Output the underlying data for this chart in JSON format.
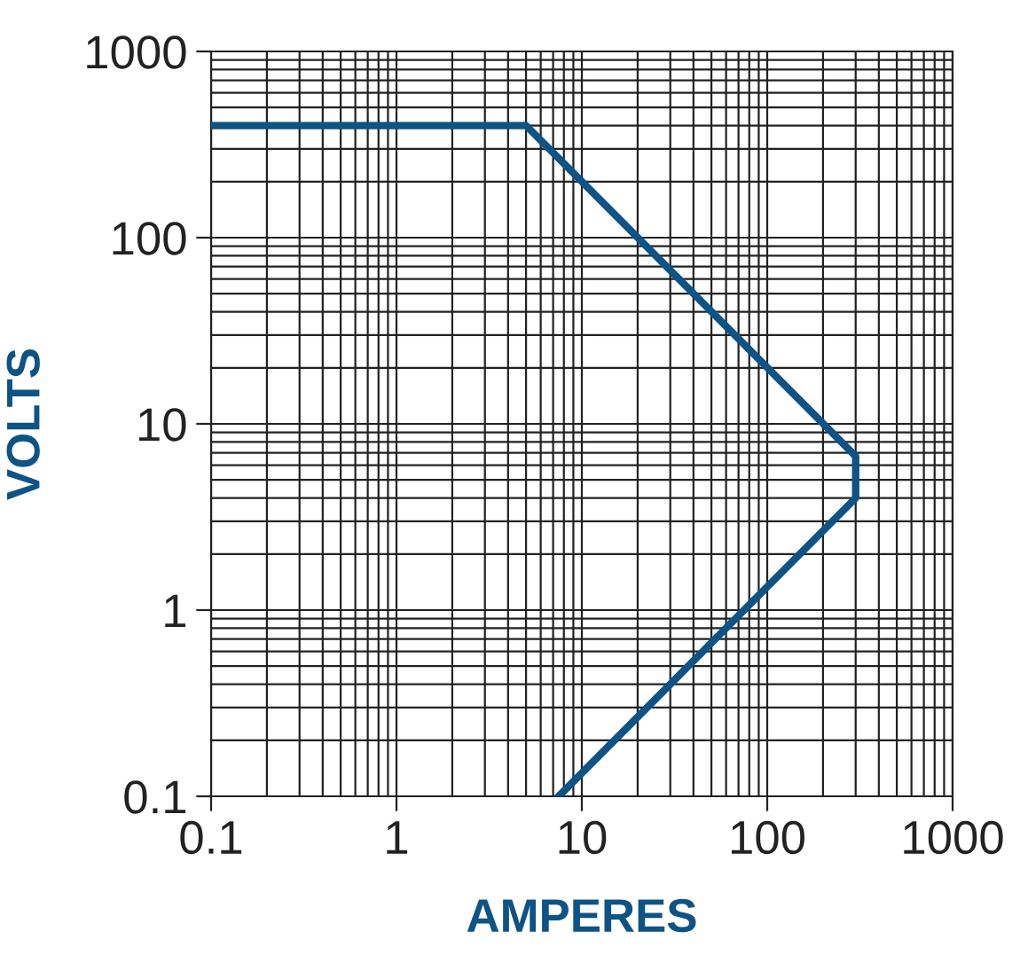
{
  "chart_data": {
    "type": "line",
    "xlabel": "AMPERES",
    "ylabel": "VOLTS",
    "log": "xy",
    "xlim": [
      0.1,
      1000
    ],
    "ylim": [
      0.1,
      1000
    ],
    "xticks": [
      0.1,
      1,
      10,
      100,
      1000
    ],
    "yticks": [
      0.1,
      1,
      10,
      100,
      1000
    ],
    "grid": true,
    "marker": "none",
    "line_style": "solid",
    "series": [
      {
        "color": "#0e5385",
        "x": [
          0.1,
          5,
          300,
          300,
          7.5
        ],
        "values": [
          400,
          400,
          6.7,
          4,
          0.1
        ]
      }
    ]
  }
}
